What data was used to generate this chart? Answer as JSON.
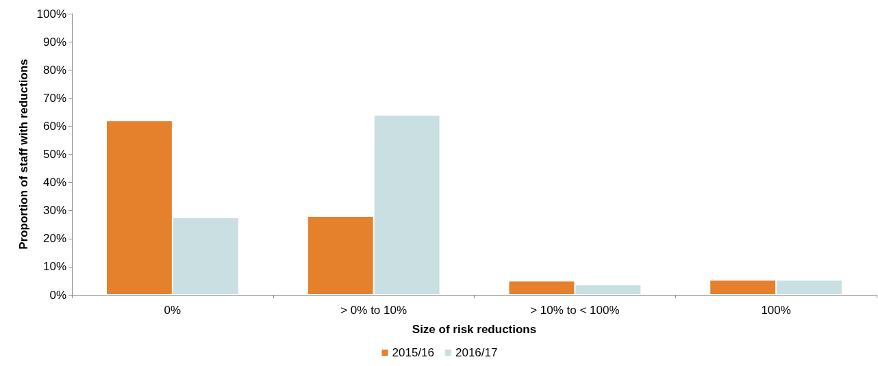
{
  "chart_data": {
    "type": "bar",
    "xlabel": "Size of risk reductions",
    "ylabel": "Proportion of staff with reductions",
    "categories": [
      "0%",
      "> 0% to 10%",
      "> 10% to < 100%",
      "100%"
    ],
    "series": [
      {
        "name": "2015/16",
        "color": "#e5812c",
        "values": [
          62,
          28,
          5,
          5.3
        ]
      },
      {
        "name": "2016/17",
        "color": "#c9dfe2",
        "values": [
          27.5,
          64,
          3.6,
          5.3
        ]
      }
    ],
    "ylim": [
      0,
      100
    ],
    "yticks": [
      {
        "value": 0,
        "label": "0%"
      },
      {
        "value": 10,
        "label": "10%"
      },
      {
        "value": 20,
        "label": "20%"
      },
      {
        "value": 30,
        "label": "30%"
      },
      {
        "value": 40,
        "label": "40%"
      },
      {
        "value": 50,
        "label": "50%"
      },
      {
        "value": 60,
        "label": "60%"
      },
      {
        "value": 70,
        "label": "70%"
      },
      {
        "value": 80,
        "label": "80%"
      },
      {
        "value": 90,
        "label": "90%"
      },
      {
        "value": 100,
        "label": "100%"
      }
    ],
    "grid": false,
    "legend": "bottom"
  }
}
